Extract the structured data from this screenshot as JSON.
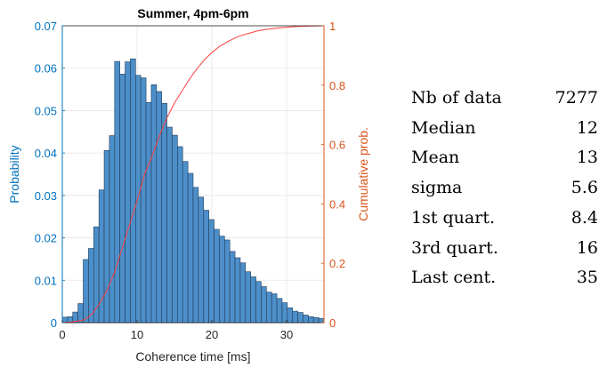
{
  "chart_data": {
    "type": "bar",
    "title": "Summer, 4pm-6pm",
    "xlabel": "Coherence time [ms]",
    "ylabel": "Probability",
    "y2label": "Cumulative prob.",
    "xlim": [
      0,
      35
    ],
    "ylim": [
      0,
      0.07
    ],
    "y2lim": [
      0,
      1
    ],
    "xticks": [
      "0",
      "10",
      "20",
      "30"
    ],
    "yticks": [
      "0",
      "0.01",
      "0.02",
      "0.03",
      "0.04",
      "0.05",
      "0.06",
      "0.07"
    ],
    "y2ticks": [
      "0",
      "0.2",
      "0.4",
      "0.6",
      "0.8",
      "1"
    ],
    "grid": true,
    "bin_width": 0.7,
    "x": [
      0.35,
      1.05,
      1.75,
      2.45,
      3.15,
      3.85,
      4.55,
      5.25,
      5.95,
      6.65,
      7.35,
      8.05,
      8.75,
      9.45,
      10.15,
      10.85,
      11.55,
      12.25,
      12.95,
      13.65,
      14.35,
      15.05,
      15.75,
      16.45,
      17.15,
      17.85,
      18.55,
      19.25,
      19.95,
      20.65,
      21.35,
      22.05,
      22.75,
      23.45,
      24.15,
      24.85,
      25.55,
      26.25,
      26.95,
      27.65,
      28.35,
      29.05,
      29.75,
      30.45,
      31.15,
      31.85,
      32.55,
      33.25,
      33.95,
      34.65
    ],
    "values": [
      0.0013,
      0.0014,
      0.0025,
      0.0045,
      0.0149,
      0.0175,
      0.0226,
      0.0313,
      0.0406,
      0.0441,
      0.0616,
      0.0586,
      0.0615,
      0.0622,
      0.0583,
      0.0577,
      0.0519,
      0.0561,
      0.0545,
      0.0517,
      0.0461,
      0.0442,
      0.0415,
      0.038,
      0.0352,
      0.0319,
      0.0296,
      0.0265,
      0.0243,
      0.022,
      0.0204,
      0.0195,
      0.0168,
      0.0153,
      0.0141,
      0.012,
      0.0108,
      0.0097,
      0.0085,
      0.0072,
      0.0068,
      0.0057,
      0.0047,
      0.0035,
      0.0027,
      0.0024,
      0.0018,
      0.0014,
      0.0012,
      0.001
    ],
    "series": [
      {
        "name": "Probability",
        "color": "#4d8fc9"
      },
      {
        "name": "Cumulative prob.",
        "color": "#ff3d3d"
      }
    ],
    "cumulative": {
      "x": [
        0,
        1,
        2,
        3,
        4,
        5,
        6,
        7,
        8,
        9,
        10,
        11,
        12,
        13,
        14,
        15,
        16,
        17,
        18,
        19,
        20,
        21,
        22,
        23,
        24,
        25,
        26,
        27,
        28,
        29,
        30,
        31,
        32,
        33,
        34,
        35
      ],
      "y": [
        0,
        0.002,
        0.005,
        0.01,
        0.03,
        0.065,
        0.11,
        0.17,
        0.25,
        0.33,
        0.41,
        0.5,
        0.56,
        0.63,
        0.69,
        0.74,
        0.78,
        0.82,
        0.855,
        0.885,
        0.91,
        0.93,
        0.945,
        0.958,
        0.968,
        0.975,
        0.982,
        0.987,
        0.99,
        0.993,
        0.995,
        0.997,
        0.998,
        0.999,
        0.9995,
        1
      ]
    },
    "colors": {
      "left_axis": "#0072bd",
      "right_axis": "#d95319",
      "bar_fill": "#4d8fc9",
      "bar_edge": "#1f3c5a",
      "cumulative_line": "#ff3d3d"
    }
  },
  "stats": [
    {
      "label": "Nb of data",
      "value": "7277"
    },
    {
      "label": "Median",
      "value": "12"
    },
    {
      "label": "Mean",
      "value": "13"
    },
    {
      "label": "sigma",
      "value": "5.6"
    },
    {
      "label": "1st quart.",
      "value": "8.4"
    },
    {
      "label": "3rd quart.",
      "value": "16"
    },
    {
      "label": "Last cent.",
      "value": "35"
    }
  ]
}
